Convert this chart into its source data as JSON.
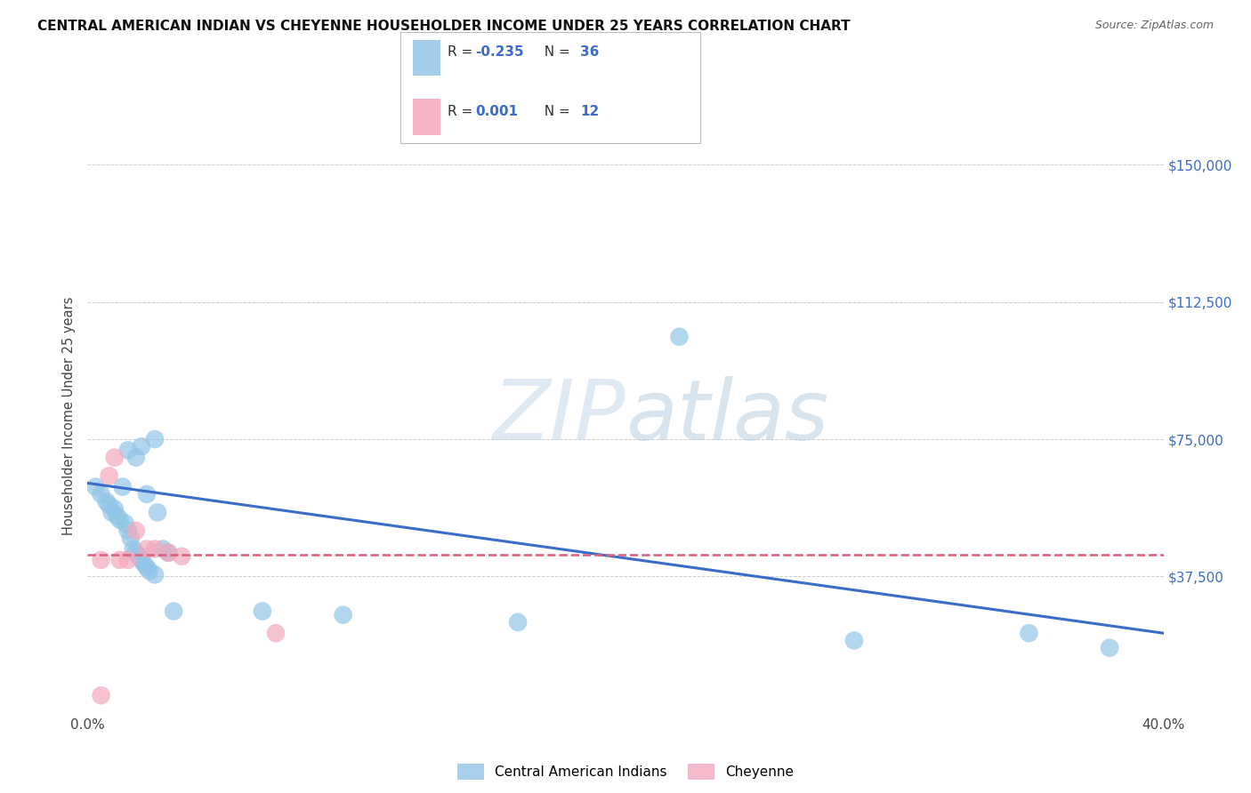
{
  "title": "CENTRAL AMERICAN INDIAN VS CHEYENNE HOUSEHOLDER INCOME UNDER 25 YEARS CORRELATION CHART",
  "source": "Source: ZipAtlas.com",
  "ylabel": "Householder Income Under 25 years",
  "xlim": [
    0.0,
    0.4
  ],
  "ylim": [
    0,
    162500
  ],
  "xticks": [
    0.0,
    0.05,
    0.1,
    0.15,
    0.2,
    0.25,
    0.3,
    0.35,
    0.4
  ],
  "xticklabels": [
    "0.0%",
    "",
    "",
    "",
    "",
    "",
    "",
    "",
    "40.0%"
  ],
  "yticks": [
    0,
    37500,
    75000,
    112500,
    150000
  ],
  "right_yticklabels": [
    "",
    "$37,500",
    "$75,000",
    "$112,500",
    "$150,000"
  ],
  "grid_color": "#cccccc",
  "background_color": "#ffffff",
  "legend_r_blue": "-0.235",
  "legend_n_blue": "36",
  "legend_r_pink": "0.001",
  "legend_n_pink": "12",
  "blue_color": "#92C5E8",
  "pink_color": "#F4A8BC",
  "blue_line_color": "#3A6CC8",
  "pink_line_color": "#D95F7A",
  "watermark_color": "#d0e4f0",
  "blue_scatter_x": [
    0.003,
    0.005,
    0.007,
    0.008,
    0.009,
    0.01,
    0.011,
    0.012,
    0.013,
    0.014,
    0.015,
    0.015,
    0.016,
    0.017,
    0.018,
    0.018,
    0.019,
    0.02,
    0.02,
    0.021,
    0.022,
    0.022,
    0.023,
    0.025,
    0.025,
    0.026,
    0.028,
    0.03,
    0.032,
    0.065,
    0.095,
    0.16,
    0.22,
    0.285,
    0.35,
    0.38
  ],
  "blue_scatter_y": [
    62000,
    60000,
    58000,
    57000,
    55000,
    56000,
    54000,
    53000,
    62000,
    52000,
    50000,
    72000,
    48000,
    45000,
    44000,
    70000,
    43000,
    42000,
    73000,
    41000,
    40000,
    60000,
    39000,
    38000,
    75000,
    55000,
    45000,
    44000,
    28000,
    28000,
    27000,
    25000,
    103000,
    20000,
    22000,
    18000
  ],
  "pink_scatter_x": [
    0.005,
    0.008,
    0.01,
    0.012,
    0.015,
    0.018,
    0.022,
    0.025,
    0.03,
    0.035,
    0.07,
    0.005
  ],
  "pink_scatter_y": [
    42000,
    65000,
    70000,
    42000,
    42000,
    50000,
    45000,
    45000,
    44000,
    43000,
    22000,
    5000
  ],
  "blue_trendline_x": [
    0.0,
    0.4
  ],
  "blue_trendline_y": [
    63000,
    22000
  ],
  "pink_trendline_x": [
    0.0,
    0.4
  ],
  "pink_trendline_y": [
    43500,
    43500
  ]
}
